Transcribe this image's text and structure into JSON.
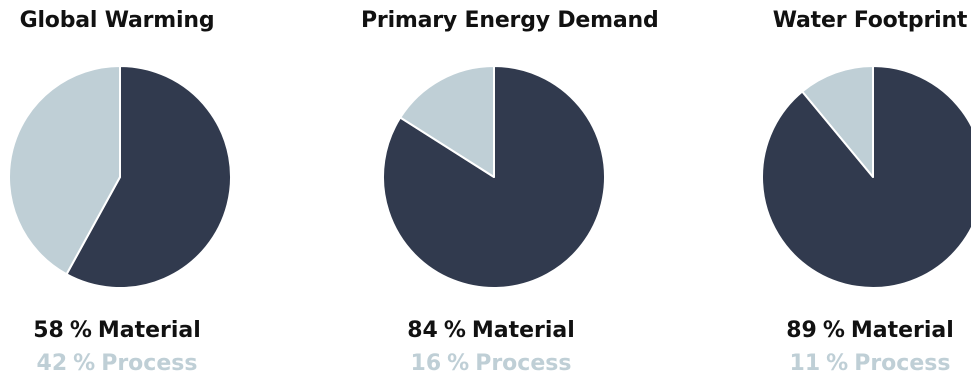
{
  "colors": {
    "material": "#313a4e",
    "process": "#bfcfd6",
    "title": "#111111"
  },
  "chart_data": [
    {
      "type": "pie",
      "title": "Global Warming",
      "slices": [
        {
          "label": "Material",
          "value": 58
        },
        {
          "label": "Process",
          "value": 42
        }
      ],
      "legend": [
        {
          "value": "58",
          "unit": "%",
          "label": "Material"
        },
        {
          "value": "42",
          "unit": "%",
          "label": "Process"
        }
      ]
    },
    {
      "type": "pie",
      "title": "Primary Energy Demand",
      "slices": [
        {
          "label": "Material",
          "value": 84
        },
        {
          "label": "Process",
          "value": 16
        }
      ],
      "legend": [
        {
          "value": "84",
          "unit": "%",
          "label": "Material"
        },
        {
          "value": "16",
          "unit": "%",
          "label": "Process"
        }
      ]
    },
    {
      "type": "pie",
      "title": "Water Footprint",
      "slices": [
        {
          "label": "Material",
          "value": 89
        },
        {
          "label": "Process",
          "value": 11
        }
      ],
      "legend": [
        {
          "value": "89",
          "unit": "%",
          "label": "Material"
        },
        {
          "value": "11",
          "unit": "%",
          "label": "Process"
        }
      ]
    }
  ]
}
